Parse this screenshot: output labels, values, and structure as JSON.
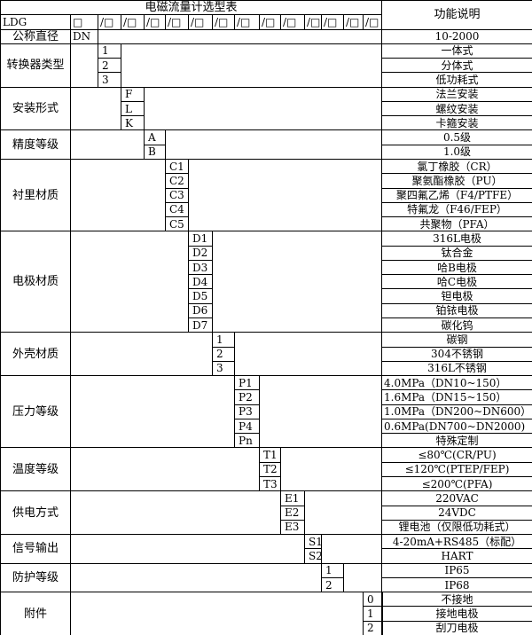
{
  "title": "电磁流量计选型表",
  "function_header": "功能说明",
  "model_row": {
    "prefix": "LDG",
    "slots": [
      "□",
      "/□",
      "/□",
      "/□",
      "/□",
      "/□",
      "/□",
      "/□",
      "/□",
      "/□",
      "/□",
      "/□",
      "/□",
      "/□"
    ]
  },
  "nominal": {
    "label": "公称直径",
    "code": "DN",
    "func": "10-2000"
  },
  "groups": [
    {
      "label": "转换器类型",
      "rows": [
        {
          "code": "1",
          "func": "一体式"
        },
        {
          "code": "2",
          "func": "分体式"
        },
        {
          "code": "3",
          "func": "低功耗式"
        }
      ]
    },
    {
      "label": "安装形式",
      "rows": [
        {
          "code": "F",
          "func": "法兰安装"
        },
        {
          "code": "L",
          "func": "螺纹安装"
        },
        {
          "code": "K",
          "func": "卡箍安装"
        }
      ]
    },
    {
      "label": "精度等级",
      "rows": [
        {
          "code": "A",
          "func": "0.5级"
        },
        {
          "code": "B",
          "func": "1.0级"
        }
      ]
    },
    {
      "label": "衬里材质",
      "rows": [
        {
          "code": "C1",
          "func": "氯丁橡胶（CR）"
        },
        {
          "code": "C2",
          "func": "聚氨酯橡胶（PU）"
        },
        {
          "code": "C3",
          "func": "聚四氟乙烯（F4/PTFE）"
        },
        {
          "code": "C4",
          "func": "特氟龙（F46/FEP）"
        },
        {
          "code": "C5",
          "func": "共聚物（PFA）"
        }
      ]
    },
    {
      "label": "电极材质",
      "rows": [
        {
          "code": "D1",
          "func": "316L电极"
        },
        {
          "code": "D2",
          "func": "钛合金"
        },
        {
          "code": "D3",
          "func": "哈B电极"
        },
        {
          "code": "D4",
          "func": "哈C电极"
        },
        {
          "code": "D5",
          "func": "钽电极"
        },
        {
          "code": "D6",
          "func": "铂铱电极"
        },
        {
          "code": "D7",
          "func": "碳化钨"
        }
      ]
    },
    {
      "label": "外壳材质",
      "rows": [
        {
          "code": "1",
          "func": "碳钢"
        },
        {
          "code": "2",
          "func": "304不锈钢"
        },
        {
          "code": "3",
          "func": "316L不锈钢"
        }
      ]
    },
    {
      "label": "压力等级",
      "rows": [
        {
          "code": "P1",
          "func": "4.0MPa（DN10~150）",
          "left": true
        },
        {
          "code": "P2",
          "func": "1.6MPa（DN15~150）",
          "left": true
        },
        {
          "code": "P3",
          "func": "1.0MPa（DN200~DN600）",
          "left": true
        },
        {
          "code": "P4",
          "func": "0.6MPa(DN700~DN2000)",
          "left": true
        },
        {
          "code": "Pn",
          "func": "特殊定制"
        }
      ]
    },
    {
      "label": "温度等级",
      "rows": [
        {
          "code": "T1",
          "func": "≤80℃(CR/PU)"
        },
        {
          "code": "T2",
          "func": "≤120℃(PTEP/FEP)"
        },
        {
          "code": "T3",
          "func": "≤200℃(PFA)"
        }
      ]
    },
    {
      "label": "供电方式",
      "rows": [
        {
          "code": "E1",
          "func": "220VAC"
        },
        {
          "code": "E2",
          "func": "24VDC"
        },
        {
          "code": "E3",
          "func": "锂电池（仅限低功耗式）"
        }
      ]
    },
    {
      "label": "信号输出",
      "rows": [
        {
          "code": "S1",
          "func": "4-20mA+RS485（标配）"
        },
        {
          "code": "S2",
          "func": "HART"
        }
      ]
    },
    {
      "label": "防护等级",
      "rows": [
        {
          "code": "1",
          "func": "IP65"
        },
        {
          "code": "2",
          "func": "IP68"
        }
      ]
    },
    {
      "label": "附件",
      "rows": [
        {
          "code": "0",
          "func": "不接地"
        },
        {
          "code": "1",
          "func": "接地电极"
        },
        {
          "code": "2",
          "func": "刮刀电极"
        }
      ]
    }
  ]
}
